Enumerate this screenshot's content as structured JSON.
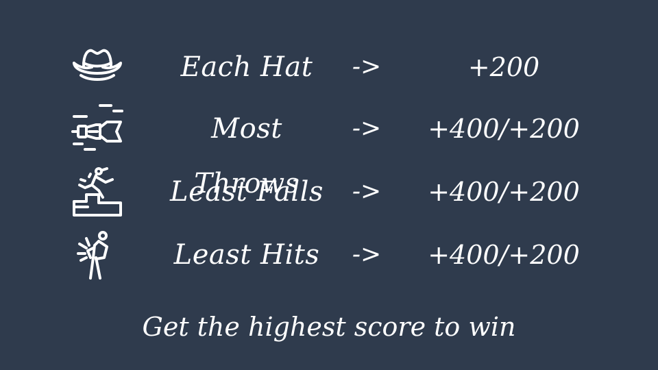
{
  "rows": [
    {
      "icon": "cowboy-hat-icon",
      "label": "Each Hat",
      "arrow": "->",
      "score": "+200"
    },
    {
      "icon": "dart-icon",
      "label": "Most Throws",
      "arrow": "->",
      "score": "+400/+200"
    },
    {
      "icon": "falling-on-stairs-icon",
      "label": "Least Falls",
      "arrow": "->",
      "score": "+400/+200"
    },
    {
      "icon": "person-hit-icon",
      "label": "Least Hits",
      "arrow": "->",
      "score": "+400/+200"
    }
  ],
  "footer": "Get the highest score to win",
  "colors": {
    "background": "#2f3b4d",
    "text": "#ffffff"
  }
}
